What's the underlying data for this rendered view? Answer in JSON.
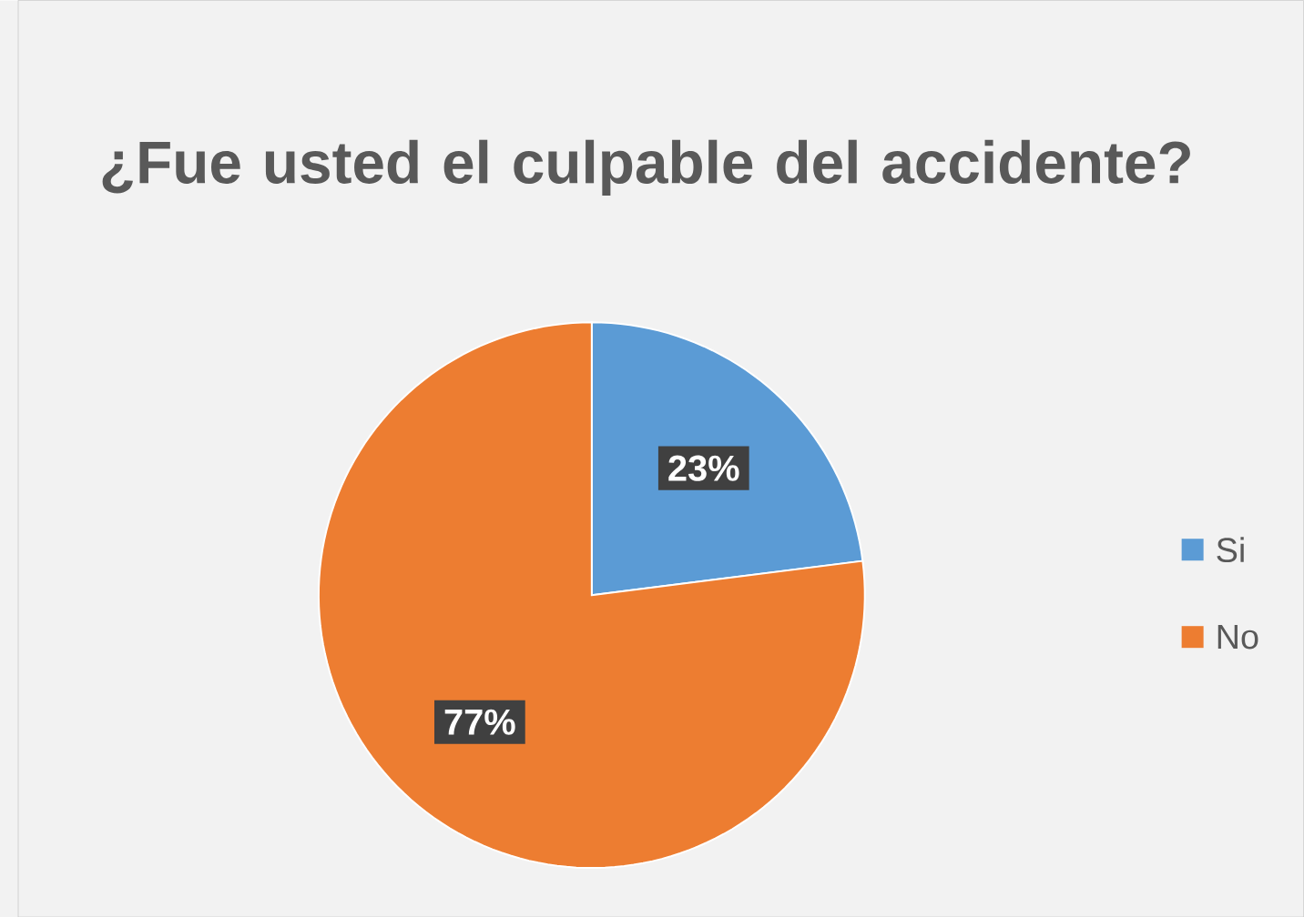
{
  "chart_data": {
    "type": "pie",
    "title": "¿Fue usted el culpable del accidente?",
    "categories": [
      "Si",
      "No"
    ],
    "values": [
      23,
      77
    ],
    "colors": [
      "#5b9bd5",
      "#ed7d31"
    ],
    "value_labels": [
      "23%",
      "77%"
    ],
    "legend": "right"
  }
}
